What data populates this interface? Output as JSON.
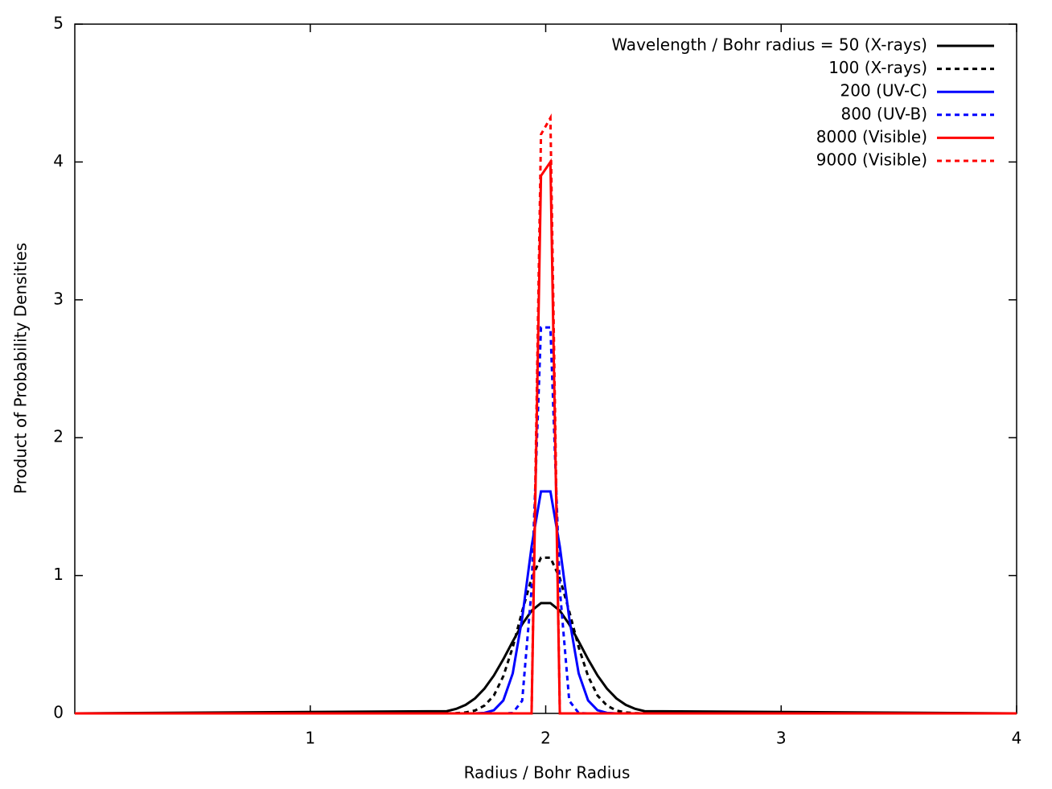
{
  "chart_data": {
    "type": "line",
    "xlabel": "Radius / Bohr Radius",
    "ylabel": "Product of Probability Densities",
    "xlim": [
      0,
      4
    ],
    "xticks": [
      1,
      2,
      3,
      4
    ],
    "ylim": [
      0,
      5
    ],
    "yticks": [
      0,
      1,
      2,
      3,
      4,
      5
    ],
    "legend": "upper right",
    "x": [
      0,
      1.58,
      1.62,
      1.66,
      1.7,
      1.74,
      1.78,
      1.82,
      1.86,
      1.9,
      1.94,
      1.98,
      2.02,
      2.06,
      2.1,
      2.14,
      2.18,
      2.22,
      2.26,
      2.3,
      2.34,
      2.38,
      2.42,
      4
    ],
    "series": [
      {
        "name": "Wavelength / Bohr radius = 50 (X-rays)",
        "color": "#000000",
        "dash": false,
        "values": [
          0,
          0.016,
          0.033,
          0.062,
          0.109,
          0.18,
          0.275,
          0.393,
          0.522,
          0.646,
          0.745,
          0.8,
          0.8,
          0.745,
          0.646,
          0.522,
          0.393,
          0.275,
          0.18,
          0.109,
          0.062,
          0.033,
          0.016,
          0
        ]
      },
      {
        "name": "100 (X-rays)",
        "color": "#000000",
        "dash": true,
        "values": [
          0,
          0,
          0.002,
          0.007,
          0.021,
          0.057,
          0.13,
          0.27,
          0.48,
          0.74,
          0.98,
          1.13,
          1.13,
          0.98,
          0.74,
          0.48,
          0.27,
          0.13,
          0.057,
          0.021,
          0.007,
          0.002,
          0,
          0
        ]
      },
      {
        "name": "200 (UV-C)",
        "color": "#0000ff",
        "dash": false,
        "values": [
          0,
          0,
          0,
          0,
          0,
          0.004,
          0.023,
          0.094,
          0.29,
          0.69,
          1.21,
          1.61,
          1.61,
          1.21,
          0.69,
          0.29,
          0.094,
          0.023,
          0.004,
          0,
          0,
          0,
          0,
          0
        ]
      },
      {
        "name": "800 (UV-B)",
        "color": "#0000ff",
        "dash": true,
        "values": [
          0,
          0,
          0,
          0,
          0,
          0,
          0,
          0,
          0.003,
          0.092,
          0.9,
          2.8,
          2.8,
          0.9,
          0.092,
          0.003,
          0,
          0,
          0,
          0,
          0,
          0,
          0,
          0
        ]
      },
      {
        "name": "8000 (Visible)",
        "color": "#ff0000",
        "dash": false,
        "values": [
          0,
          0,
          0,
          0,
          0,
          0,
          0,
          0,
          0,
          0,
          0,
          3.9,
          4.0,
          0,
          0,
          0,
          0,
          0,
          0,
          0,
          0,
          0,
          0,
          0
        ]
      },
      {
        "name": "9000 (Visible)",
        "color": "#ff0000",
        "dash": true,
        "values": [
          0,
          0,
          0,
          0,
          0,
          0,
          0,
          0,
          0,
          0,
          0,
          4.2,
          4.32,
          0,
          0,
          0,
          0,
          0,
          0,
          0,
          0,
          0,
          0,
          0
        ]
      }
    ]
  }
}
